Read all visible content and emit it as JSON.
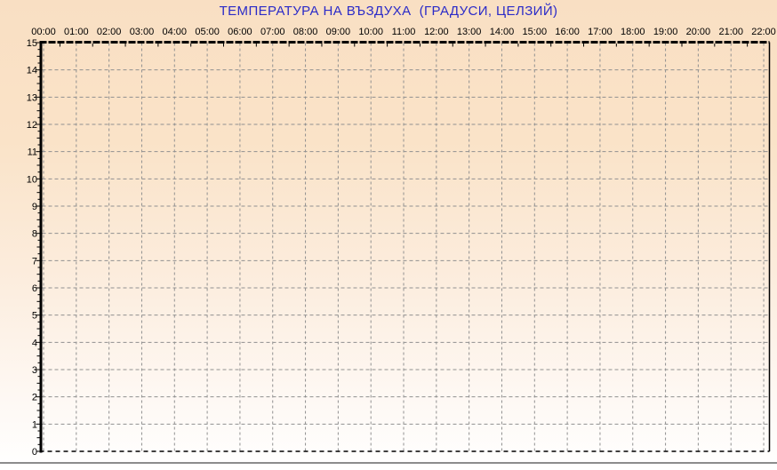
{
  "colors": {
    "background_top": "#F9DFC3",
    "background_bottom": "#FFFFFF",
    "title": "#2B2BC8",
    "grid": "#909090",
    "axis": "#000000",
    "label": "#000000",
    "divider": "#8C8C8C"
  },
  "chart_data": {
    "type": "line",
    "title": "ТЕМПЕРАТУРА НА ВЪЗДУХА  (ГРАДУСИ, ЦЕЛЗИЙ)",
    "xlabel": "",
    "ylabel": "",
    "x_tick_labels": [
      "00:00",
      "01:00",
      "02:00",
      "03:00",
      "04:00",
      "05:00",
      "06:00",
      "07:00",
      "08:00",
      "09:00",
      "10:00",
      "11:00",
      "12:00",
      "13:00",
      "14:00",
      "15:00",
      "16:00",
      "17:00",
      "18:00",
      "19:00",
      "20:00",
      "21:00",
      "22:00"
    ],
    "y_ticks": [
      0,
      1,
      2,
      3,
      4,
      5,
      6,
      7,
      8,
      9,
      10,
      11,
      12,
      13,
      14,
      15
    ],
    "ylim": [
      0,
      15
    ],
    "x_axis_position": "top",
    "grid": true,
    "legend_position": "none",
    "series": []
  }
}
